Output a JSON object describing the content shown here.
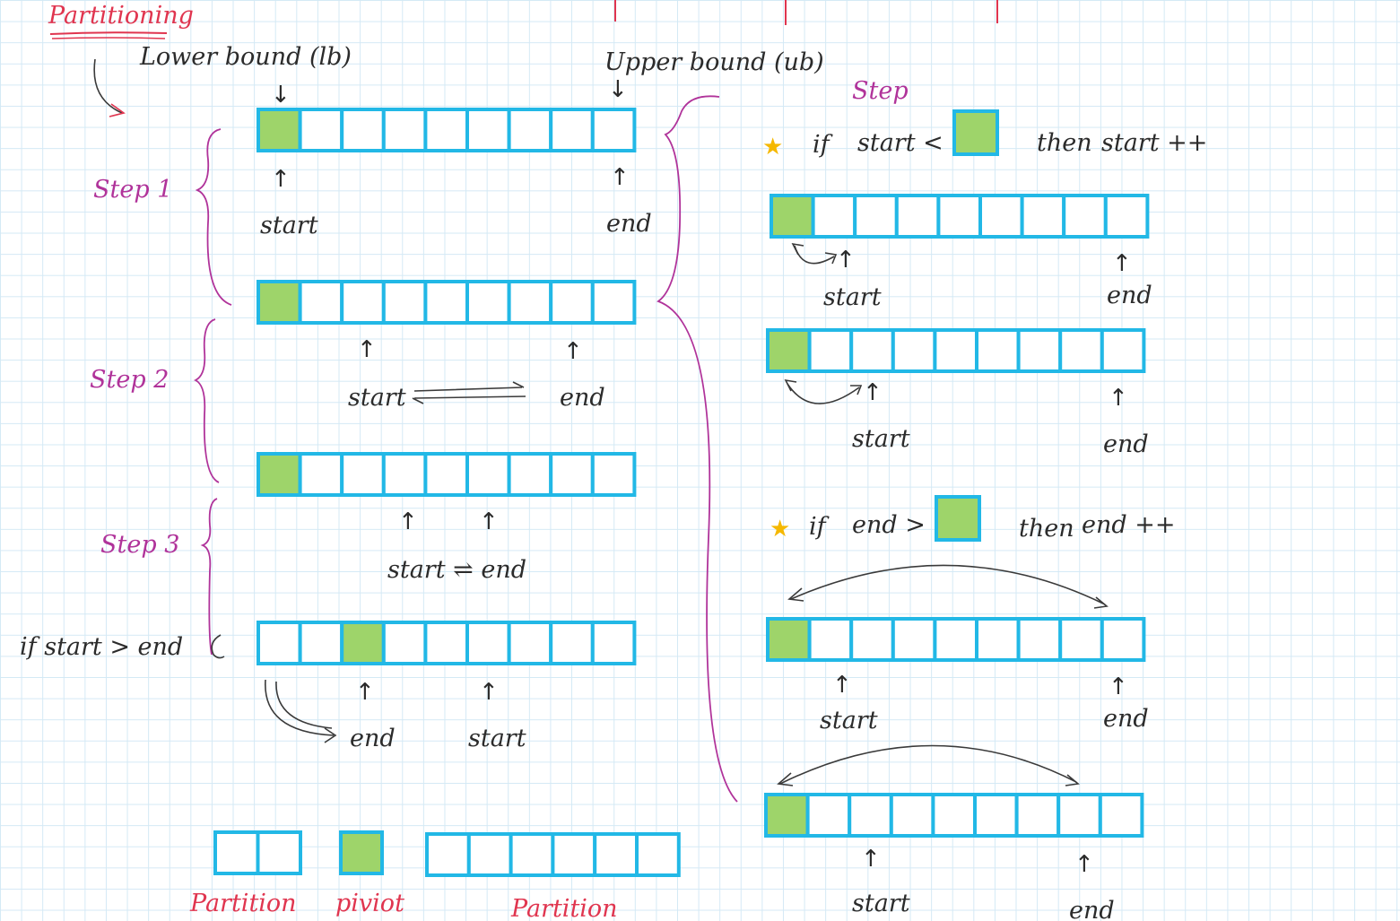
{
  "title": "Partitioning",
  "labels": {
    "lower_bound": "Lower bound (lb)",
    "upper_bound": "Upper bound (ub)",
    "step1": "Step 1",
    "step2": "Step 2",
    "step3": "Step 3",
    "step_right": "Step",
    "start": "start",
    "end": "end",
    "if_start_gt_end": "if start > end",
    "start_swap_end": "start ⇌ end",
    "down_arrow": "↓",
    "up_arrow": "↑",
    "rule1_if": "if",
    "rule1_cond": "start <",
    "rule1_then": "then",
    "rule1_action": "start ++",
    "rule2_if": "if",
    "rule2_cond": "end >",
    "rule2_then": "then",
    "rule2_action": "end ++",
    "star": "★",
    "partition_left": "Partition",
    "pivot": "piviot",
    "partition_right": "Partition"
  },
  "colors": {
    "cell_border": "#22b8e6",
    "pivot_fill": "#9ed46a",
    "annotation_pink": "#b0339a",
    "title_red": "#e0354f",
    "star": "#f5b800"
  },
  "arrays": {
    "left_cells": 9,
    "right_cells": 9,
    "step1_top_pivot_index": 0,
    "after_step3_pivot_index": 2
  }
}
